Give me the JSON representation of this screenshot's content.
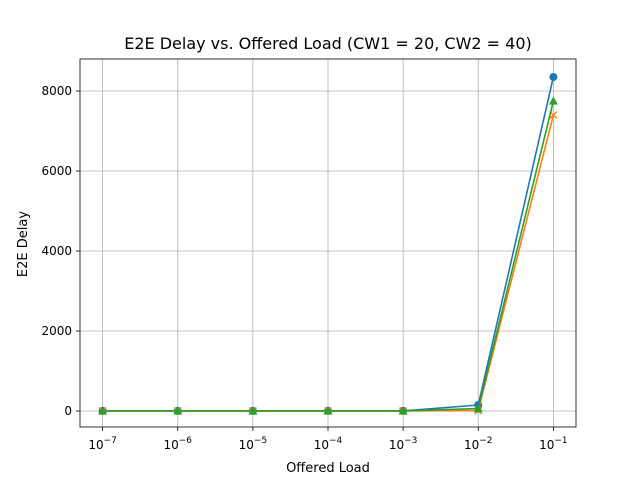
{
  "chart_data": {
    "type": "line",
    "title": "E2E Delay vs. Offered Load (CW1 = 20, CW2 = 40)",
    "xlabel": "Offered Load",
    "ylabel": "E2E Delay",
    "xscale": "log",
    "x": [
      1e-07,
      1e-06,
      1e-05,
      0.0001,
      0.001,
      0.01,
      0.1
    ],
    "xlim": [
      5e-08,
      0.2
    ],
    "ylim": [
      -400,
      8800
    ],
    "x_ticks": [
      1e-07,
      1e-06,
      1e-05,
      0.0001,
      0.001,
      0.01,
      0.1
    ],
    "x_tick_labels": [
      {
        "base": "10",
        "exp": "−7"
      },
      {
        "base": "10",
        "exp": "−6"
      },
      {
        "base": "10",
        "exp": "−5"
      },
      {
        "base": "10",
        "exp": "−4"
      },
      {
        "base": "10",
        "exp": "−3"
      },
      {
        "base": "10",
        "exp": "−2"
      },
      {
        "base": "10",
        "exp": "−1"
      }
    ],
    "y_ticks": [
      0,
      2000,
      4000,
      6000,
      8000
    ],
    "y_tick_labels": [
      "0",
      "2000",
      "4000",
      "6000",
      "8000"
    ],
    "grid": true,
    "legend": false,
    "series": [
      {
        "values": [
          2,
          2,
          2,
          2,
          2,
          150,
          8350
        ],
        "color": "#1f77b4",
        "marker": "circle"
      },
      {
        "values": [
          1,
          1,
          1,
          1,
          1,
          10,
          7400
        ],
        "color": "#ff7f0e",
        "marker": "x"
      },
      {
        "values": [
          1,
          1,
          1,
          1,
          1,
          60,
          7750
        ],
        "color": "#2ca02c",
        "marker": "triangle"
      }
    ]
  }
}
